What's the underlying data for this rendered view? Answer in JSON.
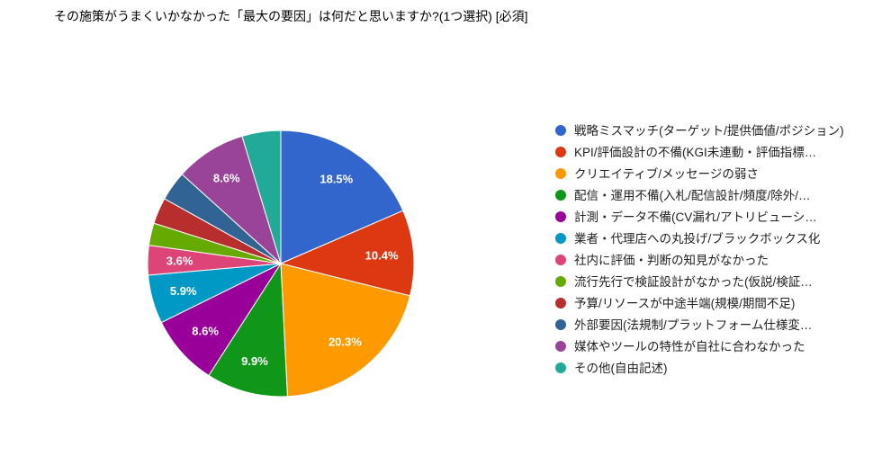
{
  "title": "その施策がうまくいかなかった「最大の要因」は何だと思いますか?(1つ選択) [必須]",
  "chart_data": {
    "type": "pie",
    "title": "その施策がうまくいかなかった「最大の要因」は何だと思いますか?(1つ選択) [必須]",
    "legend_position": "right",
    "start_angle_deg": 0,
    "direction": "clockwise",
    "slices": [
      {
        "label": "戦略ミスマッチ(ターゲット/提供価値/ポジション)",
        "value": 18.5,
        "pct_label": "18.5%",
        "color": "#3366CC"
      },
      {
        "label": "KPI/評価設計の不備(KGI未連動・評価指標…",
        "value": 10.4,
        "pct_label": "10.4%",
        "color": "#DC3912"
      },
      {
        "label": "クリエイティブ/メッセージの弱さ",
        "value": 20.3,
        "pct_label": "20.3%",
        "color": "#FF9900"
      },
      {
        "label": "配信・運用不備(入札/配信設計/頻度/除外/…",
        "value": 9.9,
        "pct_label": "9.9%",
        "color": "#109618"
      },
      {
        "label": "計測・データ不備(CV漏れ/アトリビューシ…",
        "value": 8.6,
        "pct_label": "8.6%",
        "color": "#990099"
      },
      {
        "label": "業者・代理店への丸投げ/ブラックボックス化",
        "value": 5.9,
        "pct_label": "5.9%",
        "color": "#0099C6"
      },
      {
        "label": "社内に評価・判断の知見がなかった",
        "value": 3.6,
        "pct_label": "3.6%",
        "color": "#DD4477"
      },
      {
        "label": "流行先行で検証設計がなかった(仮説/検証…",
        "value": 2.7,
        "pct_label": "",
        "color": "#66AA00"
      },
      {
        "label": "予算/リソースが中途半端(規模/期間不足)",
        "value": 3.2,
        "pct_label": "",
        "color": "#B82E2E"
      },
      {
        "label": "外部要因(法規制/プラットフォーム仕様変…",
        "value": 3.6,
        "pct_label": "",
        "color": "#316395"
      },
      {
        "label": "媒体やツールの特性が自社に合わなかった",
        "value": 8.6,
        "pct_label": "8.6%",
        "color": "#994499"
      },
      {
        "label": "その他(自由記述)",
        "value": 4.7,
        "pct_label": "",
        "color": "#22AA99"
      }
    ]
  }
}
